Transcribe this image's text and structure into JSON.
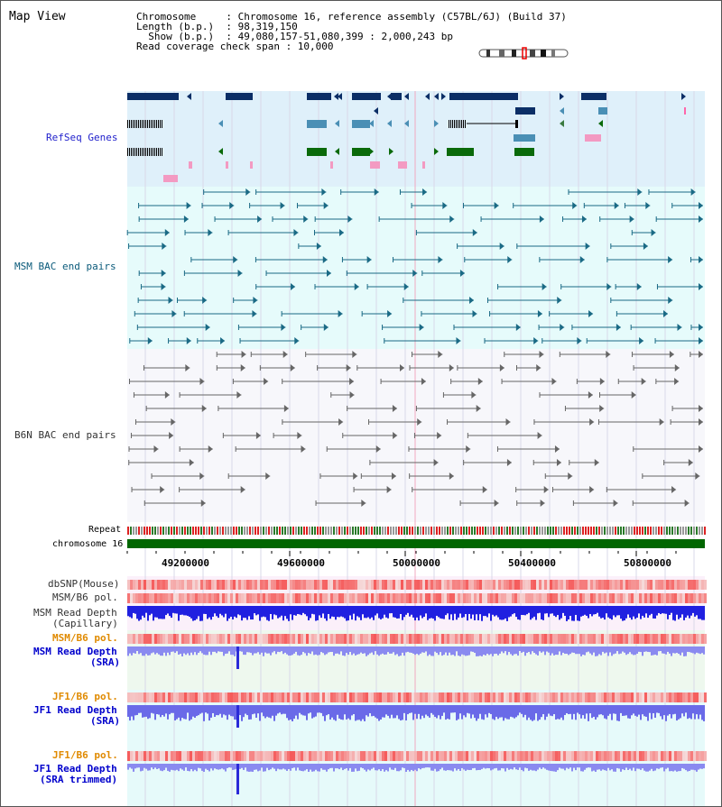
{
  "title": "Map View",
  "info": {
    "line1": "Chromosome     : Chromosome 16, reference assembly (C57BL/6J) (Build 37)",
    "line2": "Length (b.p.)  : 98,319,150",
    "line3": "  Show (b.p.)  : 49,080,157-51,080,399 : 2,000,243 bp",
    "line4": "Read coverage check span : 10,000"
  },
  "tracks": {
    "refseq": "RefSeq Genes",
    "msm_bac": "MSM BAC end pairs",
    "b6n_bac": "B6N BAC end pairs",
    "repeat": "Repeat",
    "chromosome": "chromosome 16",
    "dbsnp": "dbSNP(Mouse)",
    "msm_b6_pol": "MSM/B6 pol.",
    "msm_read_cap_1": "MSM Read Depth",
    "msm_read_cap_2": "(Capillary)",
    "msm_b6_pol2": "MSM/B6 pol.",
    "msm_read_sra_1": "MSM Read Depth",
    "msm_read_sra_2": "(SRA)",
    "jf1_b6_pol": "JF1/B6 pol.",
    "jf1_read_sra_1": "JF1 Read Depth",
    "jf1_read_sra_2": "(SRA)",
    "jf1_b6_pol2": "JF1/B6 pol.",
    "jf1_read_trim_1": "JF1 Read Depth",
    "jf1_read_trim_2": "(SRA trimmed)"
  },
  "ruler": [
    "49200000",
    "49600000",
    "50000000",
    "50400000",
    "50800000"
  ],
  "colors": {
    "refseq_label": "#2222cc",
    "msm_label": "#0a5a7a",
    "b6n_label": "#333333",
    "pol_orange": "#e08a00",
    "read_blue": "#0000cc",
    "refseq_bg": "#dff0fa",
    "msm_bg": "#e6fbfb",
    "b6n_bg": "#f7f7fb"
  }
}
